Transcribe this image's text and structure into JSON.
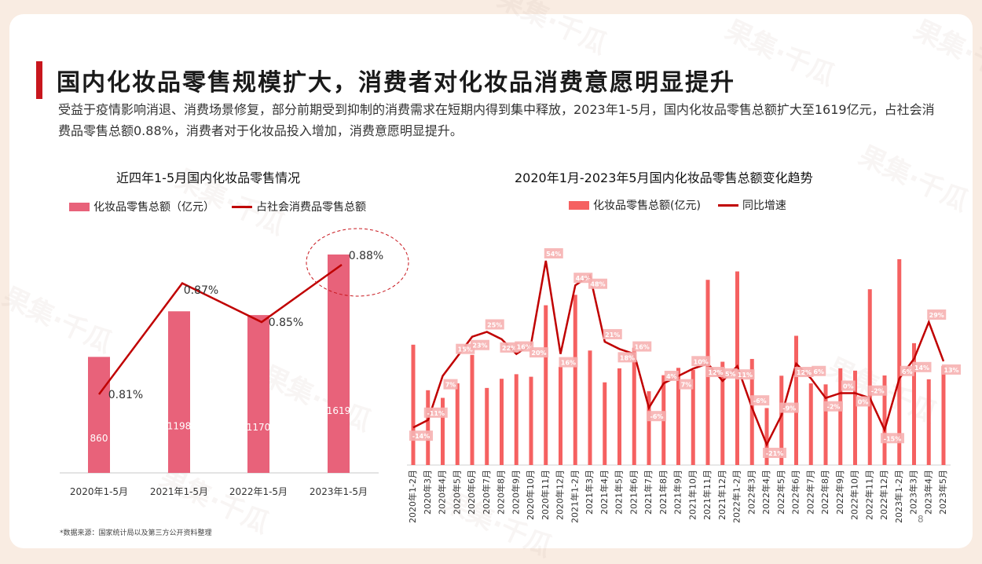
{
  "page": {
    "title": "国内化妆品零售规模扩大，消费者对化妆品消费意愿明显提升",
    "subtitle": "受益于疫情影响消退、消费场景修复，部分前期受到抑制的消费需求在短期内得到集中释放，2023年1-5月，国内化妆品零售总额扩大至1619亿元，占社会消费品零售总额0.88%，消费者对于化妆品投入增加，消费意愿明显提升。",
    "source": "*数据来源：国家统计局以及第三方公开资料整理",
    "page_number": "8",
    "watermark": "果集·千瓜"
  },
  "colors": {
    "accent": "#c8161d",
    "bar_left": "#e8627a",
    "bar_right": "#f56161",
    "line": "#c00000",
    "label_bg": "#f6b1b1"
  },
  "chart_data": [
    {
      "type": "bar",
      "title": "近四年1-5月国内化妆品零售情况",
      "legend": {
        "bar": "化妆品零售总额（亿元）",
        "line": "占社会消费品零售总额"
      },
      "categories": [
        "2020年1-5月",
        "2021年1-5月",
        "2022年1-5月",
        "2023年1-5月"
      ],
      "series": [
        {
          "name": "化妆品零售总额（亿元）",
          "type": "bar",
          "values": [
            860,
            1198,
            1170,
            1619
          ],
          "labels": [
            "860",
            "1198",
            "1170",
            "1619"
          ]
        },
        {
          "name": "占社会消费品零售总额",
          "type": "line",
          "values": [
            0.81,
            0.87,
            0.85,
            0.88
          ],
          "labels": [
            "0.81%",
            "0.87%",
            "0.85%",
            "0.88%"
          ]
        }
      ],
      "annotation": "highlight circle around 0.88%"
    },
    {
      "type": "bar",
      "title": "2020年1月-2023年5月国内化妆品零售总额变化趋势",
      "legend": {
        "bar": "化妆品零售总额(亿元)",
        "line": "同比增速"
      },
      "categories": [
        "2020年1-2月",
        "2020年3月",
        "2020年4月",
        "2020年5月",
        "2020年6月",
        "2020年7月",
        "2020年8月",
        "2020年9月",
        "2020年10月",
        "2020年11月",
        "2020年12月",
        "2021年1-2月",
        "2021年3月",
        "2021年4月",
        "2021年5月",
        "2021年6月",
        "2021年7月",
        "2021年8月",
        "2021年9月",
        "2021年10月",
        "2021年11月",
        "2021年12月",
        "2022年1-2月",
        "2022年3月",
        "2022年4月",
        "2022年5月",
        "2022年6月",
        "2022年7月",
        "2022年8月",
        "2022年9月",
        "2022年10月",
        "2022年11月",
        "2022年12月",
        "2023年1-2月",
        "2023年3月",
        "2023年4月",
        "2023年5月"
      ],
      "series": [
        {
          "name": "化妆品零售总额(亿元)",
          "type": "bar",
          "values": [
            473,
            294,
            264,
            321,
            433,
            303,
            339,
            357,
            347,
            628,
            386,
            669,
            450,
            325,
            380,
            461,
            290,
            353,
            382,
            374,
            728,
            406,
            761,
            417,
            224,
            351,
            508,
            321,
            317,
            380,
            371,
            691,
            352,
            809,
            479,
            337,
            390
          ]
        },
        {
          "name": "同比增速",
          "type": "line",
          "values": [
            -14,
            -11,
            7,
            15,
            23,
            25,
            22,
            16,
            20,
            54,
            16,
            44,
            48,
            21,
            18,
            16,
            -6,
            4,
            7,
            10,
            12,
            5,
            11,
            -6,
            -21,
            -9,
            12,
            6,
            -2,
            0,
            0,
            -2,
            -15,
            6,
            14,
            29,
            13
          ],
          "labels": [
            "-14%",
            "-11%",
            "7%",
            "15%",
            "23%",
            "25%",
            "22%",
            "16%",
            "20%",
            "54%",
            "16%",
            "44%",
            "48%",
            "21%",
            "18%",
            "16%",
            "-6%",
            "4%",
            "7%",
            "10%",
            "12%",
            "5%",
            "11%",
            "-6%",
            "-21%",
            "-9%",
            "12%",
            "6%",
            "-2%",
            "0%",
            "0%",
            "-2%",
            "-15%",
            "6%",
            "14%",
            "29%",
            "13%"
          ]
        }
      ]
    }
  ]
}
